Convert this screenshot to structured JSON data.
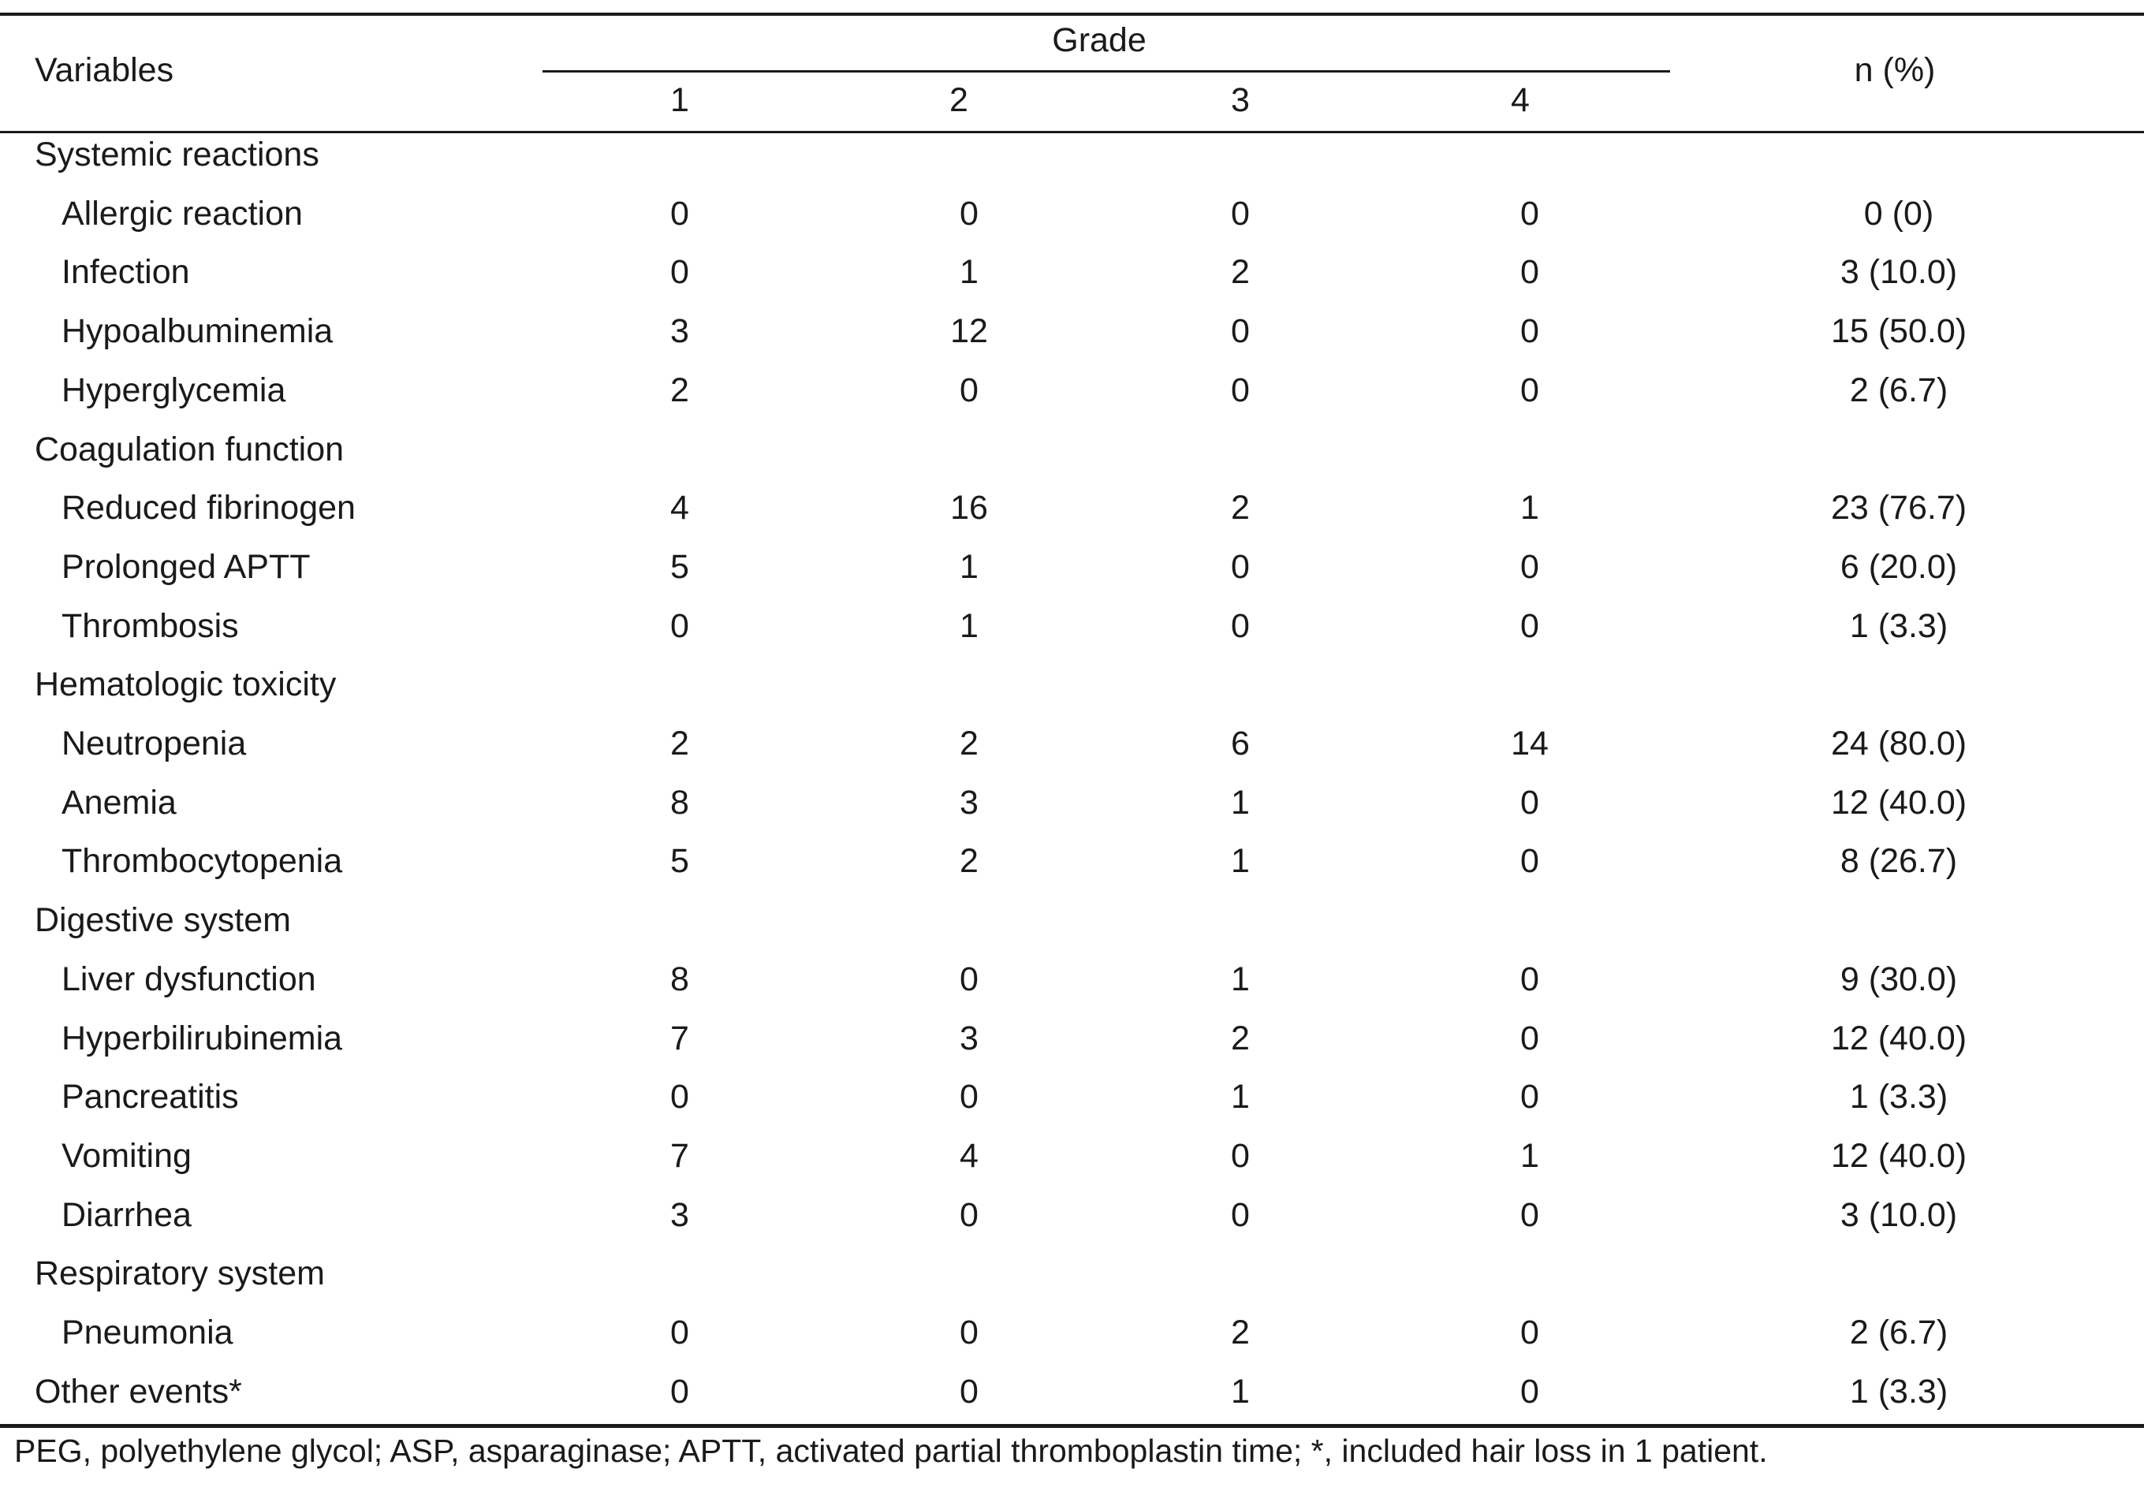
{
  "header": {
    "variables": "Variables",
    "grade": "Grade",
    "n_percent": "n (%)",
    "grades": [
      "1",
      "2",
      "3",
      "4"
    ]
  },
  "rows": [
    {
      "type": "category",
      "label": "Systemic reactions"
    },
    {
      "type": "item",
      "label": "Allergic reaction",
      "g1": "0",
      "g2": "0",
      "g3": "0",
      "g4": "0",
      "n": "0 (0)"
    },
    {
      "type": "item",
      "label": "Infection",
      "g1": "0",
      "g2": "1",
      "g3": "2",
      "g4": "0",
      "n": "3 (10.0)"
    },
    {
      "type": "item",
      "label": "Hypoalbuminemia",
      "g1": "3",
      "g2": "12",
      "g3": "0",
      "g4": "0",
      "n": "15 (50.0)"
    },
    {
      "type": "item",
      "label": "Hyperglycemia",
      "g1": "2",
      "g2": "0",
      "g3": "0",
      "g4": "0",
      "n": "2 (6.7)"
    },
    {
      "type": "category",
      "label": "Coagulation function"
    },
    {
      "type": "item",
      "label": "Reduced fibrinogen",
      "g1": "4",
      "g2": "16",
      "g3": "2",
      "g4": "1",
      "n": "23 (76.7)"
    },
    {
      "type": "item",
      "label": "Prolonged APTT",
      "g1": "5",
      "g2": "1",
      "g3": "0",
      "g4": "0",
      "n": "6 (20.0)"
    },
    {
      "type": "item",
      "label": "Thrombosis",
      "g1": "0",
      "g2": "1",
      "g3": "0",
      "g4": "0",
      "n": "1 (3.3)"
    },
    {
      "type": "category",
      "label": "Hematologic toxicity"
    },
    {
      "type": "item",
      "label": "Neutropenia",
      "g1": "2",
      "g2": "2",
      "g3": "6",
      "g4": "14",
      "n": "24 (80.0)"
    },
    {
      "type": "item",
      "label": "Anemia",
      "g1": "8",
      "g2": "3",
      "g3": "1",
      "g4": "0",
      "n": "12 (40.0)"
    },
    {
      "type": "item",
      "label": "Thrombocytopenia",
      "g1": "5",
      "g2": "2",
      "g3": "1",
      "g4": "0",
      "n": "8 (26.7)"
    },
    {
      "type": "category",
      "label": "Digestive system"
    },
    {
      "type": "item",
      "label": "Liver dysfunction",
      "g1": "8",
      "g2": "0",
      "g3": "1",
      "g4": "0",
      "n": "9 (30.0)"
    },
    {
      "type": "item",
      "label": "Hyperbilirubinemia",
      "g1": "7",
      "g2": "3",
      "g3": "2",
      "g4": "0",
      "n": "12 (40.0)"
    },
    {
      "type": "item",
      "label": "Pancreatitis",
      "g1": "0",
      "g2": "0",
      "g3": "1",
      "g4": "0",
      "n": "1 (3.3)"
    },
    {
      "type": "item",
      "label": "Vomiting",
      "g1": "7",
      "g2": "4",
      "g3": "0",
      "g4": "1",
      "n": "12 (40.0)"
    },
    {
      "type": "item",
      "label": "Diarrhea",
      "g1": "3",
      "g2": "0",
      "g3": "0",
      "g4": "0",
      "n": "3 (10.0)"
    },
    {
      "type": "category",
      "label": "Respiratory system"
    },
    {
      "type": "item",
      "label": "Pneumonia",
      "g1": "0",
      "g2": "0",
      "g3": "2",
      "g4": "0",
      "n": "2 (6.7)"
    },
    {
      "type": "category-item",
      "label": "Other events*",
      "g1": "0",
      "g2": "0",
      "g3": "1",
      "g4": "0",
      "n": "1 (3.3)"
    }
  ],
  "footnote": "PEG, polyethylene glycol; ASP, asparaginase; APTT, activated partial thromboplastin time; *, included hair loss in 1 patient."
}
